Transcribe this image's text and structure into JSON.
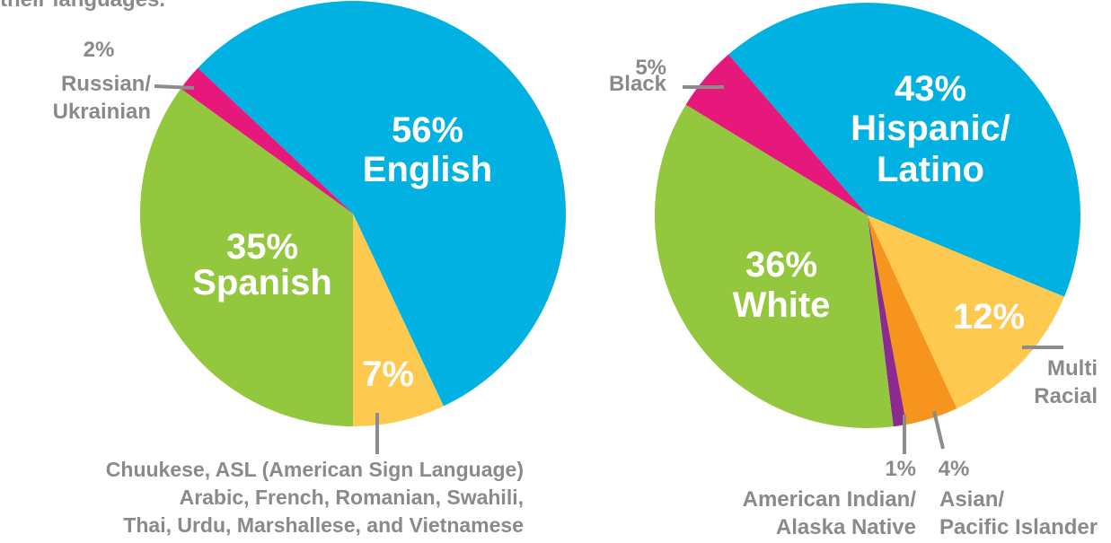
{
  "header": {
    "caption": "their languages."
  },
  "chart_data": [
    {
      "type": "pie",
      "categories": [
        "English",
        "Chuukese, ASL (American Sign Language)\nArabic, French, Romanian, Swahili,\nThai, Urdu, Marshallese, and Vietnamese",
        "Spanish",
        "Russian/\nUkrainian"
      ],
      "values": [
        56,
        7,
        35,
        2
      ],
      "value_labels": [
        "56%",
        "7%",
        "35%",
        "2%"
      ],
      "colors": [
        "#00b1e1",
        "#fdc94f",
        "#93c83e",
        "#e6187b"
      ]
    },
    {
      "type": "pie",
      "categories": [
        "Hispanic/\nLatino",
        "Multi\nRacial",
        "Asian/\nPacific Islander",
        "American Indian/\nAlaska Native",
        "White",
        "Black"
      ],
      "values": [
        43,
        12,
        4,
        1,
        36,
        5
      ],
      "value_labels": [
        "43%",
        "12%",
        "4%",
        "1%",
        "36%",
        "5%"
      ],
      "colors": [
        "#00b1e1",
        "#fdc94f",
        "#f7941d",
        "#8b2b8f",
        "#93c83e",
        "#e6187b"
      ]
    }
  ]
}
